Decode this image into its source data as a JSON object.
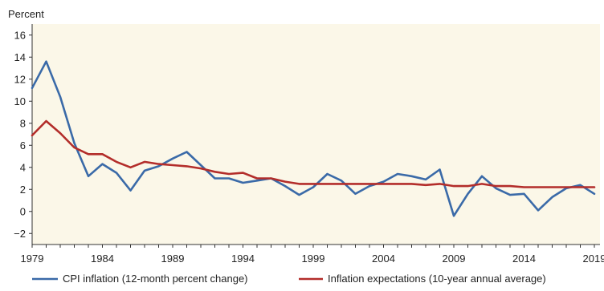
{
  "chart_data": {
    "type": "line",
    "ylabel": "Percent",
    "ylim": [
      -3,
      17
    ],
    "yticks": [
      -2,
      0,
      2,
      4,
      6,
      8,
      10,
      12,
      14,
      16
    ],
    "xlim": [
      1979,
      2019.4
    ],
    "xticks": [
      1979,
      1984,
      1989,
      1994,
      1999,
      2004,
      2009,
      2014,
      2019
    ],
    "background": "#fbf7e8",
    "legend_position": "bottom",
    "series": [
      {
        "name": "CPI inflation (12-month percent change)",
        "color": "#3a6aa8",
        "x": [
          1979,
          1980,
          1981,
          1982,
          1983,
          1984,
          1985,
          1986,
          1987,
          1988,
          1989,
          1990,
          1991,
          1992,
          1993,
          1994,
          1995,
          1996,
          1997,
          1998,
          1999,
          2000,
          2001,
          2002,
          2003,
          2004,
          2005,
          2006,
          2007,
          2008,
          2009,
          2010,
          2011,
          2012,
          2013,
          2014,
          2015,
          2016,
          2017,
          2018,
          2019
        ],
        "values": [
          11.2,
          13.6,
          10.4,
          6.2,
          3.2,
          4.3,
          3.5,
          1.9,
          3.7,
          4.1,
          4.8,
          5.4,
          4.2,
          3.0,
          3.0,
          2.6,
          2.8,
          3.0,
          2.3,
          1.5,
          2.2,
          3.4,
          2.8,
          1.6,
          2.3,
          2.7,
          3.4,
          3.2,
          2.9,
          3.8,
          -0.4,
          1.6,
          3.2,
          2.1,
          1.5,
          1.6,
          0.1,
          1.3,
          2.1,
          2.4,
          1.6
        ]
      },
      {
        "name": "Inflation expectations (10-year annual average)",
        "color": "#b32d2a",
        "x": [
          1979,
          1980,
          1981,
          1982,
          1983,
          1984,
          1985,
          1986,
          1987,
          1988,
          1989,
          1990,
          1991,
          1992,
          1993,
          1994,
          1995,
          1996,
          1997,
          1998,
          1999,
          2000,
          2001,
          2002,
          2003,
          2004,
          2005,
          2006,
          2007,
          2008,
          2009,
          2010,
          2011,
          2012,
          2013,
          2014,
          2015,
          2016,
          2017,
          2018,
          2019
        ],
        "values": [
          6.9,
          8.2,
          7.1,
          5.8,
          5.2,
          5.2,
          4.5,
          4.0,
          4.5,
          4.3,
          4.2,
          4.1,
          3.9,
          3.6,
          3.4,
          3.5,
          3.0,
          3.0,
          2.7,
          2.5,
          2.5,
          2.5,
          2.5,
          2.5,
          2.5,
          2.5,
          2.5,
          2.5,
          2.4,
          2.5,
          2.3,
          2.3,
          2.5,
          2.3,
          2.3,
          2.2,
          2.2,
          2.2,
          2.2,
          2.2,
          2.2
        ]
      }
    ]
  }
}
